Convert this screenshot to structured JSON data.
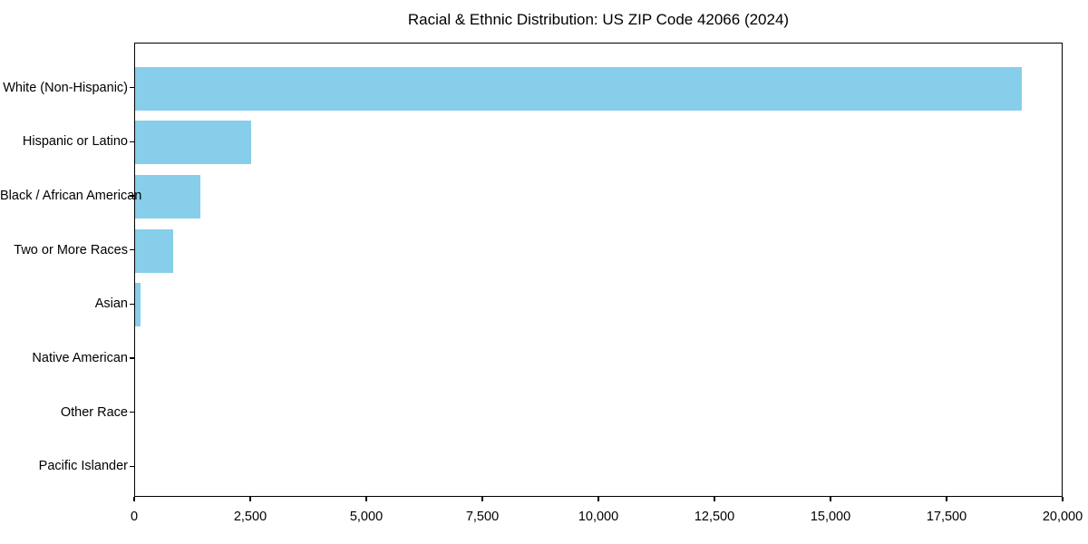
{
  "chart_data": {
    "type": "bar",
    "orientation": "horizontal",
    "title": "Racial & Ethnic Distribution: US ZIP Code 42066 (2024)",
    "categories": [
      "White (Non-Hispanic)",
      "Hispanic or Latino",
      "Black / African American",
      "Two or More Races",
      "Asian",
      "Native American",
      "Other Race",
      "Pacific Islander"
    ],
    "values": [
      19100,
      2500,
      1400,
      820,
      110,
      0,
      0,
      0
    ],
    "xlabel": "",
    "ylabel": "",
    "xlim": [
      0,
      20000
    ],
    "x_ticks": [
      0,
      2500,
      5000,
      7500,
      10000,
      12500,
      15000,
      17500,
      20000
    ],
    "x_tick_labels": [
      "0",
      "2,500",
      "5,000",
      "7,500",
      "10,000",
      "12,500",
      "15,000",
      "17,500",
      "20,000"
    ],
    "grid": false,
    "legend": null,
    "bar_color": "#87CEEB",
    "axis_color": "#000000",
    "background_color": "#ffffff"
  }
}
